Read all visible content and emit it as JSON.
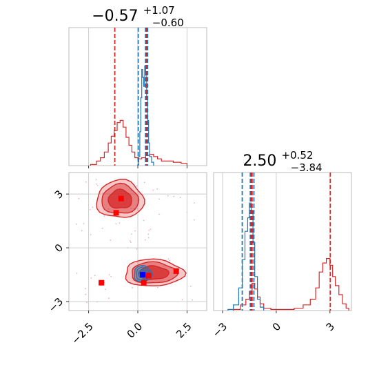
{
  "chart_data": [
    {
      "panel": "top-left",
      "type": "line",
      "title": {
        "median": "−0.57",
        "plus": "+1.07",
        "minus": "−0.60"
      },
      "xlim": [
        -3.5,
        3.5
      ],
      "grid": true,
      "series": [
        {
          "color": "#d62728",
          "values": [
            {
              "x": -2.4,
              "y": 0.01
            },
            {
              "x": -2.1,
              "y": 0.04
            },
            {
              "x": -1.9,
              "y": 0.07
            },
            {
              "x": -1.7,
              "y": 0.12
            },
            {
              "x": -1.5,
              "y": 0.2
            },
            {
              "x": -1.35,
              "y": 0.26
            },
            {
              "x": -1.2,
              "y": 0.31
            },
            {
              "x": -1.05,
              "y": 0.38
            },
            {
              "x": -0.9,
              "y": 0.4
            },
            {
              "x": -0.75,
              "y": 0.34
            },
            {
              "x": -0.6,
              "y": 0.25
            },
            {
              "x": -0.45,
              "y": 0.18
            },
            {
              "x": -0.3,
              "y": 0.12
            },
            {
              "x": -0.15,
              "y": 0.07
            },
            {
              "x": 0.0,
              "y": 0.06
            },
            {
              "x": 0.2,
              "y": 0.07
            },
            {
              "x": 0.4,
              "y": 0.09
            },
            {
              "x": 0.6,
              "y": 0.1
            },
            {
              "x": 0.8,
              "y": 0.08
            },
            {
              "x": 1.0,
              "y": 0.06
            },
            {
              "x": 1.2,
              "y": 0.04
            },
            {
              "x": 1.5,
              "y": 0.04
            },
            {
              "x": 1.8,
              "y": 0.03
            },
            {
              "x": 2.2,
              "y": 0.02
            },
            {
              "x": 2.5,
              "y": 0.01
            }
          ],
          "quantiles": [
            -1.17,
            0.47
          ]
        },
        {
          "color": "#1f77b4",
          "values": [
            {
              "x": 0.0,
              "y": 0.01
            },
            {
              "x": 0.05,
              "y": 0.08
            },
            {
              "x": 0.1,
              "y": 0.3
            },
            {
              "x": 0.15,
              "y": 0.6
            },
            {
              "x": 0.2,
              "y": 0.85
            },
            {
              "x": 0.25,
              "y": 0.78
            },
            {
              "x": 0.3,
              "y": 0.7
            },
            {
              "x": 0.35,
              "y": 0.88
            },
            {
              "x": 0.4,
              "y": 0.8
            },
            {
              "x": 0.45,
              "y": 0.6
            },
            {
              "x": 0.5,
              "y": 0.4
            },
            {
              "x": 0.55,
              "y": 0.2
            },
            {
              "x": 0.6,
              "y": 0.08
            },
            {
              "x": 0.7,
              "y": 0.03
            },
            {
              "x": 0.8,
              "y": 0.01
            }
          ],
          "quantiles": [
            0.02,
            0.39,
            0.5
          ]
        }
      ],
      "reference_lines": [
        {
          "x": 0.45,
          "color": "#d62728"
        }
      ]
    },
    {
      "panel": "bottom-left",
      "type": "scatter",
      "xlim": [
        -3.5,
        3.5
      ],
      "ylim": [
        -3.5,
        4.2
      ],
      "xticks": [
        "−2.5",
        "0.0",
        "2.5"
      ],
      "yticks": [
        "−3",
        "0",
        "3"
      ],
      "grid": true,
      "markers": [
        {
          "x": -0.85,
          "y": 2.75,
          "color": "#ff0000"
        },
        {
          "x": -1.1,
          "y": 1.95,
          "color": "#ff0000"
        },
        {
          "x": -1.85,
          "y": -1.95,
          "color": "#ff0000"
        },
        {
          "x": 0.3,
          "y": -1.95,
          "color": "#ff0000"
        },
        {
          "x": 0.55,
          "y": -1.55,
          "color": "#ff0000"
        },
        {
          "x": 1.95,
          "y": -1.3,
          "color": "#ff0000"
        },
        {
          "x": 0.25,
          "y": -1.5,
          "color": "#0000ff"
        }
      ],
      "contour_series": [
        {
          "color": "#d62728",
          "blobs": [
            {
              "cx": -0.9,
              "cy": 2.7,
              "rx": 1.2,
              "ry": 1.05
            },
            {
              "cx": 0.8,
              "cy": -1.4,
              "rx": 1.5,
              "ry": 0.75
            }
          ]
        },
        {
          "color": "#1f77b4",
          "blobs": [
            {
              "cx": 0.25,
              "cy": -1.45,
              "rx": 0.45,
              "ry": 0.45
            }
          ]
        }
      ]
    },
    {
      "panel": "bottom-right",
      "type": "line",
      "title": {
        "median": "2.50",
        "plus": "+0.52",
        "minus": "−3.84"
      },
      "xlim": [
        -3.5,
        4.2
      ],
      "xticks": [
        "−3",
        "0",
        "3"
      ],
      "grid": true,
      "series": [
        {
          "color": "#d62728",
          "values": [
            {
              "x": -2.4,
              "y": 0.01
            },
            {
              "x": -2.0,
              "y": 0.05
            },
            {
              "x": -1.7,
              "y": 0.1
            },
            {
              "x": -1.5,
              "y": 0.17
            },
            {
              "x": -1.35,
              "y": 0.24
            },
            {
              "x": -1.2,
              "y": 0.19
            },
            {
              "x": -1.05,
              "y": 0.12
            },
            {
              "x": -0.9,
              "y": 0.06
            },
            {
              "x": -0.7,
              "y": 0.02
            },
            {
              "x": -0.3,
              "y": 0.01
            },
            {
              "x": 0.2,
              "y": 0.01
            },
            {
              "x": 1.0,
              "y": 0.02
            },
            {
              "x": 1.5,
              "y": 0.05
            },
            {
              "x": 1.9,
              "y": 0.1
            },
            {
              "x": 2.2,
              "y": 0.2
            },
            {
              "x": 2.4,
              "y": 0.34
            },
            {
              "x": 2.6,
              "y": 0.42
            },
            {
              "x": 2.8,
              "y": 0.46
            },
            {
              "x": 3.0,
              "y": 0.4
            },
            {
              "x": 3.15,
              "y": 0.3
            },
            {
              "x": 3.3,
              "y": 0.22
            },
            {
              "x": 3.5,
              "y": 0.14
            },
            {
              "x": 3.7,
              "y": 0.06
            },
            {
              "x": 3.9,
              "y": 0.02
            },
            {
              "x": 4.05,
              "y": 0.01
            }
          ],
          "quantiles": [
            -1.35,
            3.02
          ]
        },
        {
          "color": "#1f77b4",
          "values": [
            {
              "x": -2.7,
              "y": 0.01
            },
            {
              "x": -2.4,
              "y": 0.05
            },
            {
              "x": -2.1,
              "y": 0.2
            },
            {
              "x": -1.9,
              "y": 0.45
            },
            {
              "x": -1.75,
              "y": 0.7
            },
            {
              "x": -1.6,
              "y": 0.82
            },
            {
              "x": -1.5,
              "y": 0.95
            },
            {
              "x": -1.4,
              "y": 0.88
            },
            {
              "x": -1.3,
              "y": 0.6
            },
            {
              "x": -1.2,
              "y": 0.3
            },
            {
              "x": -1.05,
              "y": 0.1
            },
            {
              "x": -0.9,
              "y": 0.03
            },
            {
              "x": -0.7,
              "y": 0.01
            }
          ],
          "quantiles": [
            -1.9,
            -1.45,
            -1.25
          ]
        }
      ],
      "reference_lines": [
        {
          "x": -1.4,
          "color": "#d62728"
        }
      ]
    }
  ]
}
